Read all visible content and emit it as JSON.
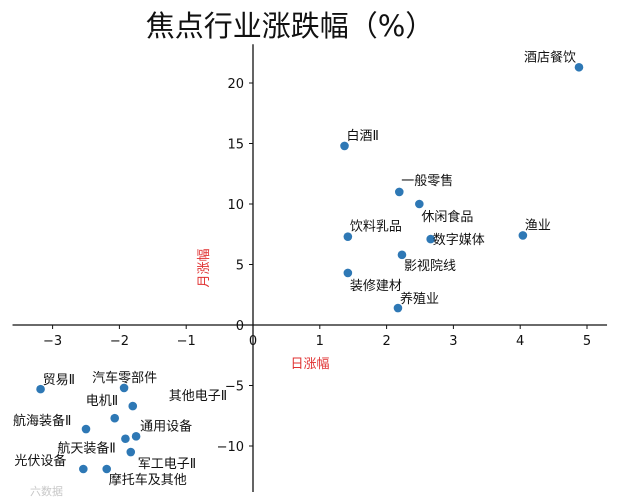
{
  "colors": {
    "point": "#2e78b5",
    "axis": "#111111",
    "axis_label": "#e03131",
    "text": "#111111"
  },
  "watermark": "六数据",
  "chart_data": {
    "type": "scatter",
    "title": "焦点行业涨跌幅（%）",
    "xlabel": "日涨幅",
    "ylabel": "月涨幅",
    "xlim": [
      -3.6,
      5.3
    ],
    "ylim": [
      -13.8,
      23.2
    ],
    "xticks": [
      -3,
      -2,
      -1,
      0,
      1,
      2,
      3,
      4,
      5
    ],
    "yticks": [
      -10,
      -5,
      0,
      5,
      10,
      15,
      20
    ],
    "points": [
      {
        "label": "酒店餐饮",
        "x": 4.88,
        "y": 21.3
      },
      {
        "label": "白酒Ⅱ",
        "x": 1.37,
        "y": 14.8
      },
      {
        "label": "一般零售",
        "x": 2.19,
        "y": 11.0
      },
      {
        "label": "休闲食品",
        "x": 2.49,
        "y": 10.0
      },
      {
        "label": "渔业",
        "x": 4.04,
        "y": 7.4
      },
      {
        "label": "数字媒体",
        "x": 2.66,
        "y": 7.1
      },
      {
        "label": "饮料乳品",
        "x": 1.42,
        "y": 7.3
      },
      {
        "label": "影视院线",
        "x": 2.23,
        "y": 5.8
      },
      {
        "label": "装修建材",
        "x": 1.42,
        "y": 4.3
      },
      {
        "label": "养殖业",
        "x": 2.17,
        "y": 1.4
      },
      {
        "label": "贸易Ⅱ",
        "x": -3.18,
        "y": -5.3
      },
      {
        "label": "汽车零部件",
        "x": -1.93,
        "y": -5.2
      },
      {
        "label": "其他电子Ⅱ",
        "x": -1.8,
        "y": -6.7
      },
      {
        "label": "电机Ⅱ",
        "x": -2.07,
        "y": -7.7
      },
      {
        "label": "航海装备Ⅱ",
        "x": -2.5,
        "y": -8.6
      },
      {
        "label": "通用设备",
        "x": -1.75,
        "y": -9.2
      },
      {
        "label": "航天装备Ⅱ",
        "x": -1.91,
        "y": -9.4
      },
      {
        "label": "军工电子Ⅱ",
        "x": -1.83,
        "y": -10.5
      },
      {
        "label": "光伏设备",
        "x": -2.54,
        "y": -11.9
      },
      {
        "label": "摩托车及其他",
        "x": -2.19,
        "y": -11.9
      }
    ]
  }
}
